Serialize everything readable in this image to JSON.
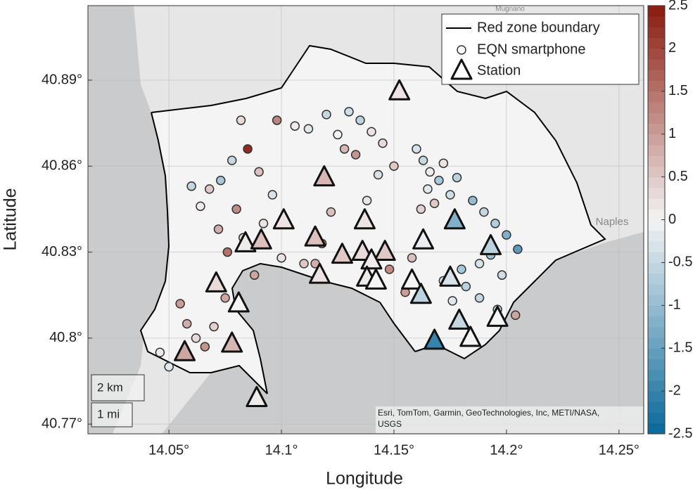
{
  "chart_data": {
    "type": "scatter",
    "xlabel": "Longitude",
    "ylabel": "Latitude",
    "xlim": [
      14.014,
      14.261
    ],
    "ylim": [
      40.7666,
      40.916
    ],
    "xticks": [
      {
        "value": 14.05,
        "label": "14.05°"
      },
      {
        "value": 14.1,
        "label": "14.1°"
      },
      {
        "value": 14.15,
        "label": "14.15°"
      },
      {
        "value": 14.2,
        "label": "14.2°"
      },
      {
        "value": 14.25,
        "label": "14.25°"
      }
    ],
    "yticks": [
      {
        "value": 40.77,
        "label": "40.77°"
      },
      {
        "value": 40.8,
        "label": "40.8°"
      },
      {
        "value": 40.83,
        "label": "40.83°"
      },
      {
        "value": 40.86,
        "label": "40.86°"
      },
      {
        "value": 40.89,
        "label": "40.89°"
      }
    ],
    "grid": true,
    "clim": [
      -2.5,
      2.5
    ],
    "cticks": [
      2.5,
      2,
      1.5,
      1,
      0.5,
      0,
      -0.5,
      -1,
      -1.5,
      -2,
      -2.5
    ],
    "colormap": [
      "#08679b",
      "#f4f4f4",
      "#8b1a0e"
    ],
    "legend": "northeast",
    "boundary": {
      "name": "Red zone boundary",
      "color": "#000000"
    },
    "series": [
      {
        "name": "EQN smartphone",
        "marker": "circle",
        "x": [
          14.082,
          14.085,
          14.078,
          14.09,
          14.096,
          14.073,
          14.068,
          14.08,
          14.092,
          14.06,
          14.064,
          14.072,
          14.076,
          14.083,
          14.088,
          14.098,
          14.106,
          14.112,
          14.12,
          14.125,
          14.13,
          14.135,
          14.14,
          14.128,
          14.133,
          14.145,
          14.15,
          14.143,
          14.138,
          14.122,
          14.16,
          14.163,
          14.166,
          14.17,
          14.172,
          14.175,
          14.168,
          14.165,
          14.178,
          14.162,
          14.185,
          14.19,
          14.195,
          14.2,
          14.205,
          14.188,
          14.193,
          14.198,
          14.182,
          14.176,
          14.055,
          14.058,
          14.062,
          14.066,
          14.07,
          14.05,
          14.046,
          14.075,
          14.11,
          14.118,
          14.148,
          14.155,
          14.158,
          14.172,
          14.18,
          14.188,
          14.196,
          14.204,
          14.1,
          14.115
        ],
        "y": [
          40.876,
          40.866,
          40.862,
          40.858,
          40.85,
          40.855,
          40.852,
          40.845,
          40.84,
          40.853,
          40.846,
          40.838,
          40.83,
          40.835,
          40.822,
          40.876,
          40.874,
          40.873,
          40.878,
          40.871,
          40.879,
          40.876,
          40.872,
          40.866,
          40.864,
          40.868,
          40.86,
          40.857,
          40.848,
          40.844,
          40.866,
          40.862,
          40.858,
          40.855,
          40.861,
          40.85,
          40.847,
          40.852,
          40.856,
          40.845,
          40.848,
          40.844,
          40.84,
          40.836,
          40.831,
          40.826,
          40.829,
          40.822,
          40.818,
          40.813,
          40.812,
          40.805,
          40.8,
          40.797,
          40.804,
          40.79,
          40.795,
          40.814,
          40.826,
          40.833,
          40.824,
          40.816,
          40.828,
          40.82,
          40.824,
          40.814,
          40.81,
          40.808,
          40.828,
          40.826
        ],
        "values": [
          0.3,
          2.3,
          -0.5,
          0.6,
          -0.3,
          -0.8,
          0.5,
          1.2,
          0.2,
          -0.5,
          0.1,
          0.8,
          1.5,
          0.4,
          0.9,
          1.3,
          0.1,
          -0.2,
          -0.5,
          0.0,
          -0.4,
          -0.6,
          0.2,
          0.7,
          1.1,
          0.3,
          0.5,
          -0.3,
          0.2,
          0.6,
          -0.3,
          -0.5,
          0.1,
          -0.8,
          0.2,
          -0.4,
          0.5,
          -0.2,
          -0.6,
          0.4,
          -1.0,
          -0.5,
          -0.7,
          -1.2,
          -1.6,
          -0.3,
          -0.9,
          -0.4,
          -0.6,
          -0.2,
          1.0,
          0.8,
          0.3,
          1.1,
          0.4,
          -0.2,
          0.1,
          0.9,
          0.5,
          1.3,
          1.2,
          1.0,
          0.6,
          -0.3,
          -0.8,
          -0.5,
          -0.6,
          0.9,
          0.2,
          0.8
        ]
      },
      {
        "name": "Station",
        "marker": "triangle",
        "x": [
          14.1524,
          14.119,
          14.137,
          14.101,
          14.177,
          14.084,
          14.091,
          14.115,
          14.163,
          14.193,
          14.127,
          14.136,
          14.146,
          14.14,
          14.117,
          14.138,
          14.142,
          14.071,
          14.158,
          14.175,
          14.162,
          14.081,
          14.196,
          14.179,
          14.168,
          14.184,
          14.057,
          14.078,
          14.089
        ],
        "y": [
          40.886,
          40.856,
          40.841,
          40.841,
          40.841,
          40.833,
          40.834,
          40.835,
          40.834,
          40.832,
          40.829,
          40.83,
          40.83,
          40.827,
          40.822,
          40.821,
          40.82,
          40.819,
          40.82,
          40.821,
          40.815,
          40.812,
          40.807,
          40.806,
          40.799,
          40.8,
          40.795,
          40.798,
          40.779
        ],
        "values": [
          0.2,
          0.7,
          0.2,
          0.2,
          -1.2,
          0.1,
          0.6,
          0.6,
          -0.1,
          -0.6,
          0.5,
          0.3,
          0.5,
          0.1,
          0.2,
          0.1,
          0.0,
          0.3,
          0.0,
          -0.3,
          -0.6,
          0.0,
          0.0,
          -0.5,
          -2.0,
          0.0,
          0.9,
          0.7,
          0.1
        ]
      }
    ],
    "place_labels": [
      "Naples",
      "Mugnano"
    ],
    "scale_bar": [
      "2 km",
      "1 mi"
    ],
    "attribution": [
      "Esri, TomTom, Garmin, GeoTechnologies, Inc, METI/NASA,",
      "USGS"
    ]
  }
}
